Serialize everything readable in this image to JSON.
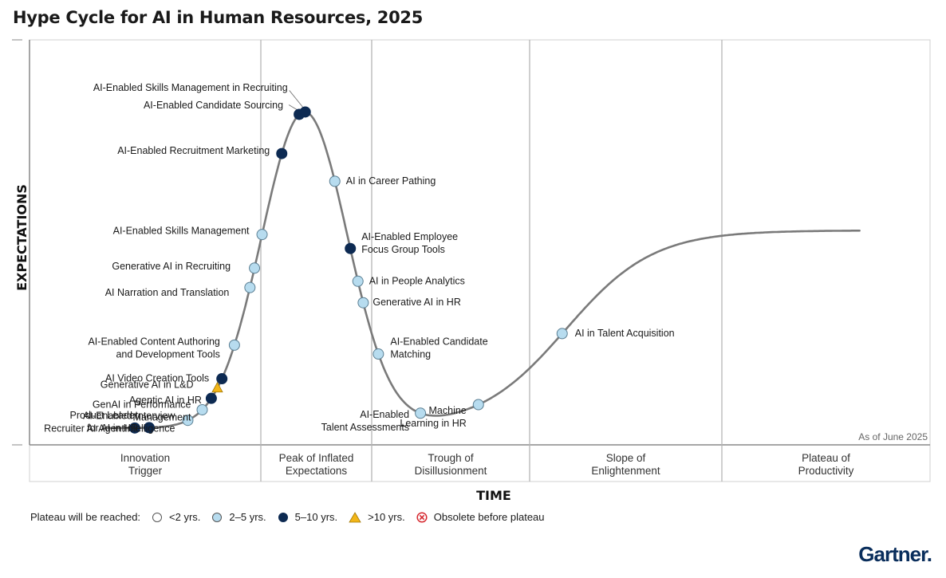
{
  "chart_data": {
    "type": "hype-cycle",
    "title": "Hype Cycle for AI in Human Resources, 2025",
    "xlabel": "TIME",
    "ylabel": "EXPECTATIONS",
    "as_of": "As of June 2025",
    "phases": [
      [
        "Innovation",
        "Trigger"
      ],
      [
        "Peak of Inflated",
        "Expectations"
      ],
      [
        "Trough of",
        "Disillusionment"
      ],
      [
        "Slope of",
        "Enlightenment"
      ],
      [
        "Plateau of",
        "Productivity"
      ]
    ],
    "legend": {
      "title": "Plateau will be reached:",
      "entries": [
        {
          "key": "lt2",
          "label": "<2 yrs."
        },
        {
          "key": "2to5",
          "label": "2–5 yrs."
        },
        {
          "key": "5to10",
          "label": "5–10 yrs."
        },
        {
          "key": "gt10",
          "label": ">10 yrs."
        },
        {
          "key": "obsolete",
          "label": "Obsolete before plateau"
        }
      ]
    },
    "colors": {
      "lt2": "#ffffff",
      "2to5": "#b7dcef",
      "5to10": "#0d2a52",
      "gt10": "#f2b619",
      "obsolete": "#d6282f",
      "curve": "#7a7a7a",
      "grid": "#b5b5b5"
    },
    "innovations": [
      {
        "name": [
          "Recruiter AI Agent"
        ],
        "t": 0.082,
        "plateau": "5to10"
      },
      {
        "name": [
          "Product Leader",
          "for AI in HR"
        ],
        "t": 0.12,
        "plateau": "5to10"
      },
      {
        "name": [
          "AI-Enabled Interview",
          "Intelligence"
        ],
        "t": 0.222,
        "plateau": "2to5"
      },
      {
        "name": [
          "GenAI in Performance",
          "Management"
        ],
        "t": 0.26,
        "plateau": "2to5"
      },
      {
        "name": [
          "Agentic AI in HR"
        ],
        "t": 0.284,
        "plateau": "5to10"
      },
      {
        "name": [
          "Generative AI in L&D"
        ],
        "t": 0.3,
        "plateau": "gt10"
      },
      {
        "name": [
          "AI Video Creation Tools"
        ],
        "t": 0.312,
        "plateau": "5to10"
      },
      {
        "name": [
          "AI-Enabled Content Authoring",
          "and Development Tools"
        ],
        "t": 0.345,
        "plateau": "2to5"
      },
      {
        "name": [
          "AI Narration and Translation"
        ],
        "t": 0.386,
        "plateau": "2to5"
      },
      {
        "name": [
          "Generative AI in Recruiting"
        ],
        "t": 0.398,
        "plateau": "2to5"
      },
      {
        "name": [
          "AI-Enabled Skills Management"
        ],
        "t": 0.418,
        "plateau": "2to5"
      },
      {
        "name": [
          "AI-Enabled Recruitment Marketing"
        ],
        "t": 0.47,
        "plateau": "5to10"
      },
      {
        "name": [
          "AI-Enabled Candidate Sourcing"
        ],
        "t": 0.516,
        "plateau": "5to10"
      },
      {
        "name": [
          "AI-Enabled Skills Management in Recruiting"
        ],
        "t": 0.532,
        "plateau": "5to10"
      },
      {
        "name": [
          "AI in Career Pathing"
        ],
        "t": 0.61,
        "plateau": "2to5"
      },
      {
        "name": [
          "AI-Enabled Employee",
          "Focus Group Tools"
        ],
        "t": 0.651,
        "plateau": "5to10"
      },
      {
        "name": [
          "AI in People Analytics"
        ],
        "t": 0.671,
        "plateau": "2to5"
      },
      {
        "name": [
          "Generative AI in HR"
        ],
        "t": 0.685,
        "plateau": "2to5"
      },
      {
        "name": [
          "AI-Enabled Candidate",
          "Matching"
        ],
        "t": 0.725,
        "plateau": "2to5"
      },
      {
        "name": [
          "AI-Enabled",
          "Talent Assessments"
        ],
        "t": 0.836,
        "plateau": "2to5"
      },
      {
        "name": [
          "Machine",
          "Learning in HR"
        ],
        "t": 0.989,
        "plateau": "2to5"
      },
      {
        "name": [
          "AI in Talent Acquisition"
        ],
        "t": 1.21,
        "plateau": "2to5"
      }
    ]
  },
  "brand": "Gartner."
}
